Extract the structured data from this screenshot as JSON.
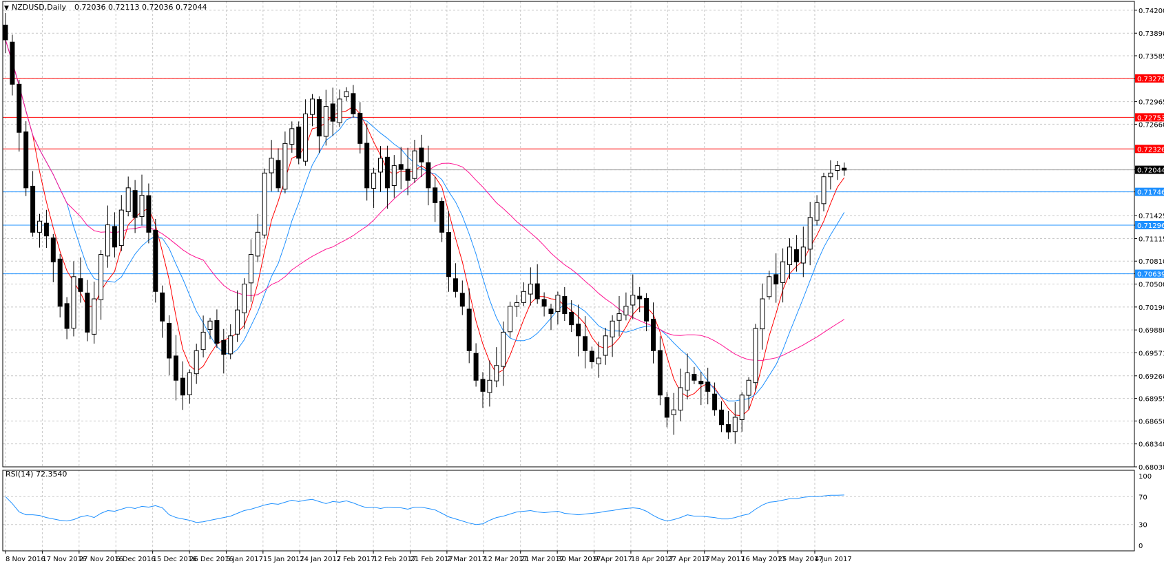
{
  "header": {
    "symbol_label": "NZDUSD,Daily",
    "ohlc_text": "0.72036 0.72113 0.72036 0.72044"
  },
  "rsi_panel": {
    "label": "RSI(14) 72.3540",
    "ticks": [
      "100",
      "70",
      "30",
      "0"
    ]
  },
  "chart_data": [
    {
      "type": "candlestick",
      "title": "NZDUSD,Daily",
      "x_tick_labels": [
        "8 Nov 2016",
        "17 Nov 2016",
        "27 Nov 2016",
        "6 Dec 2016",
        "15 Dec 2016",
        "26 Dec 2016",
        "5 Jan 2017",
        "15 Jan 2017",
        "24 Jan 2017",
        "2 Feb 2017",
        "12 Feb 2017",
        "21 Feb 2017",
        "2 Mar 2017",
        "12 Mar 2017",
        "21 Mar 2017",
        "30 Mar 2017",
        "9 Apr 2017",
        "18 Apr 2017",
        "27 Apr 2017",
        "7 May 2017",
        "16 May 2017",
        "25 May 2017",
        "4 Jun 2017"
      ],
      "y_tick_labels": [
        "0.74200",
        "0.73890",
        "0.73585",
        "0.73279",
        "0.72965",
        "0.72660",
        "0.72044",
        "0.71746",
        "0.71425",
        "0.71296",
        "0.71115",
        "0.70810",
        "0.70639",
        "0.70500",
        "0.70190",
        "0.69880",
        "0.69571",
        "0.69260",
        "0.68955",
        "0.68650",
        "0.68340",
        "0.68030"
      ],
      "ylim": [
        0.6803,
        0.7432
      ],
      "grid": true,
      "current_price": 0.72044,
      "support_resistance": {
        "red": [
          0.73279,
          0.72753,
          0.72326
        ],
        "blue": [
          0.71746,
          0.71296,
          0.70639
        ]
      },
      "closes": [
        0.738,
        0.732,
        0.7255,
        0.718,
        0.712,
        0.7135,
        0.7115,
        0.708,
        0.702,
        0.699,
        0.706,
        0.704,
        0.6985,
        0.703,
        0.709,
        0.713,
        0.71,
        0.715,
        0.718,
        0.714,
        0.717,
        0.712,
        0.704,
        0.7,
        0.695,
        0.692,
        0.69,
        0.693,
        0.696,
        0.6985,
        0.7,
        0.697,
        0.6955,
        0.698,
        0.7015,
        0.705,
        0.709,
        0.712,
        0.72,
        0.722,
        0.718,
        0.724,
        0.726,
        0.722,
        0.728,
        0.73,
        0.725,
        0.729,
        0.727,
        0.73,
        0.731,
        0.728,
        0.724,
        0.718,
        0.72,
        0.722,
        0.718,
        0.721,
        0.7205,
        0.719,
        0.723,
        0.7215,
        0.718,
        0.716,
        0.712,
        0.706,
        0.704,
        0.702,
        0.696,
        0.692,
        0.6905,
        0.692,
        0.694,
        0.6985,
        0.702,
        0.7025,
        0.704,
        0.705,
        0.703,
        0.702,
        0.701,
        0.7035,
        0.701,
        0.6995,
        0.698,
        0.696,
        0.6945,
        0.695,
        0.698,
        0.7,
        0.701,
        0.702,
        0.7035,
        0.703,
        0.7,
        0.696,
        0.69,
        0.687,
        0.688,
        0.691,
        0.693,
        0.692,
        0.6915,
        0.6905,
        0.688,
        0.686,
        0.685,
        0.687,
        0.69,
        0.692,
        0.699,
        0.703,
        0.706,
        0.705,
        0.708,
        0.71,
        0.708,
        0.71,
        0.714,
        0.716,
        0.7195,
        0.72,
        0.721,
        0.7204
      ],
      "moving_averages": [
        {
          "color": "#ff0000",
          "name": ""
        },
        {
          "color": "#1e90ff",
          "name": ""
        },
        {
          "color": "#ff1493",
          "name": ""
        }
      ]
    },
    {
      "type": "line",
      "title": "RSI(14) 72.3540",
      "ylim": [
        0,
        100
      ],
      "y_ticks": [
        0,
        30,
        70,
        100
      ],
      "color": "#1e90ff",
      "values": [
        70,
        60,
        48,
        44,
        44,
        43,
        40,
        38,
        36,
        35,
        37,
        41,
        43,
        40,
        46,
        50,
        49,
        52,
        55,
        53,
        56,
        55,
        57,
        54,
        44,
        40,
        38,
        36,
        33,
        34,
        36,
        38,
        40,
        42,
        46,
        50,
        52,
        55,
        58,
        60,
        59,
        62,
        65,
        63,
        65,
        66,
        63,
        60,
        63,
        62,
        64,
        61,
        57,
        54,
        55,
        53,
        55,
        54,
        54,
        52,
        55,
        55,
        53,
        51,
        46,
        41,
        38,
        35,
        32,
        30,
        31,
        36,
        40,
        42,
        45,
        48,
        49,
        50,
        48,
        47,
        48,
        49,
        46,
        45,
        44,
        45,
        46,
        47,
        49,
        50,
        52,
        53,
        54,
        53,
        49,
        43,
        38,
        35,
        37,
        40,
        44,
        42,
        42,
        41,
        40,
        38,
        38,
        40,
        43,
        45,
        52,
        58,
        62,
        63,
        65,
        67,
        67,
        69,
        70,
        70,
        71,
        72,
        72,
        72.35
      ]
    }
  ]
}
